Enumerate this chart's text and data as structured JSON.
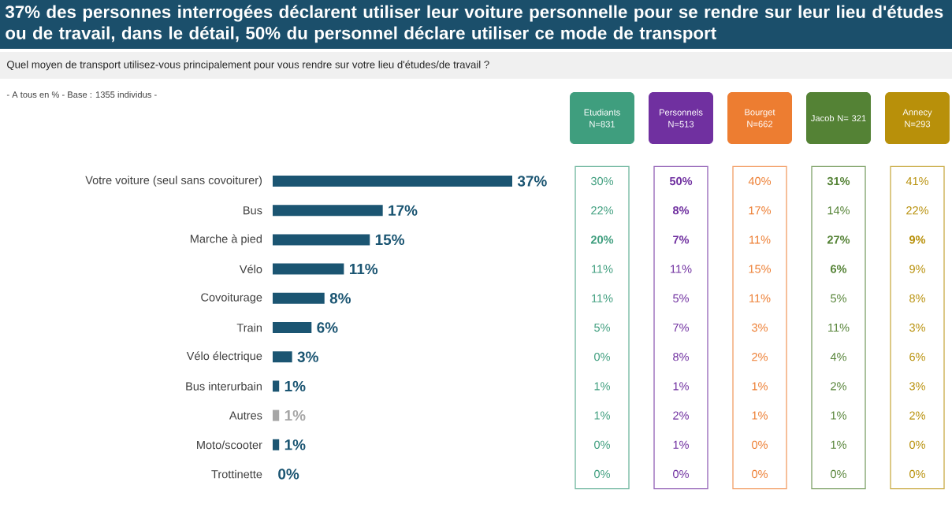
{
  "chart_data": [
    {
      "type": "bar",
      "title": "37% des personnes interrogées déclarent utiliser leur voiture personnelle pour se rendre sur leur lieu d'études ou de travail, dans le détail, 50% du personnel déclare utiliser ce mode de transport",
      "subtitle": "Quel moyen de transport utilisez-vous principalement pour vous rendre sur votre lieu d'études/de travail ?",
      "annotations": [
        "- A tous en % - Base : 1355 individus -"
      ],
      "orientation": "horizontal",
      "tick_labels": "y",
      "categories": [
        "Votre voiture (seul sans covoiturer)",
        "Bus",
        "Marche à pied",
        "Vélo",
        "Covoiturage",
        "Train",
        "Vélo électrique",
        "Bus interurbain",
        "Autres",
        "Moto/scooter",
        "Trottinette"
      ],
      "values": [
        37,
        17,
        15,
        11,
        8,
        6,
        3,
        1,
        1,
        1,
        0
      ],
      "value_labels": [
        "37%",
        "17%",
        "15%",
        "11%",
        "8%",
        "6%",
        "3%",
        "1%",
        "1%",
        "1%",
        "0%"
      ],
      "colors": [
        "#1b5572",
        "#1b5572",
        "#1b5572",
        "#1b5572",
        "#1b5572",
        "#1b5572",
        "#1b5572",
        "#1b5572",
        "#a6a6a6",
        "#1b5572",
        "#1b5572"
      ]
    },
    {
      "type": "other",
      "categories": [
        "Etudiants N=831",
        "Personnels N=513",
        "Bourget N=662",
        "Jacob N= 321",
        "Annecy N=293"
      ],
      "y_categories": [
        null,
        null,
        null,
        null,
        null,
        null,
        null,
        null,
        null,
        null,
        null
      ],
      "colors": [
        "#3f9e7e",
        "#7030a0",
        "#ed7d31",
        "#548235",
        "#b8900a"
      ],
      "cell_labels": [
        [
          "30%",
          "**50%**",
          "40%",
          "**31%**",
          "41%"
        ],
        [
          "22%",
          "**8%**",
          "17%",
          "14%",
          "22%"
        ],
        [
          "**20%**",
          "**7%**",
          "11%",
          "**27%**",
          "**9%**"
        ],
        [
          "11%",
          "11%",
          "15%",
          "**6%**",
          "9%"
        ],
        [
          "11%",
          "5%",
          "11%",
          "5%",
          "8%"
        ],
        [
          "5%",
          "7%",
          "3%",
          "11%",
          "3%"
        ],
        [
          "0%",
          "8%",
          "2%",
          "4%",
          "6%"
        ],
        [
          "1%",
          "1%",
          "1%",
          "2%",
          "3%"
        ],
        [
          "1%",
          "2%",
          "1%",
          "1%",
          "2%"
        ],
        [
          "0%",
          "1%",
          "0%",
          "1%",
          "0%"
        ],
        [
          "0%",
          "0%",
          "0%",
          "0%",
          "0%"
        ]
      ]
    }
  ]
}
